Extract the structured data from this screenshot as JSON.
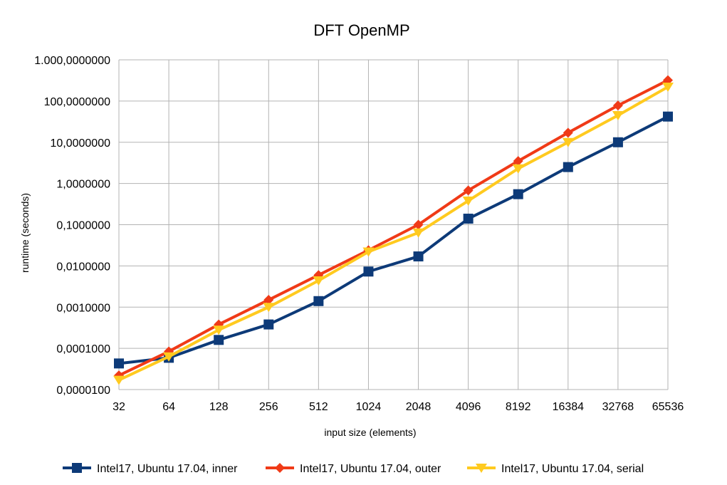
{
  "chart_data": {
    "type": "line",
    "title": "DFT OpenMP",
    "xlabel": "input size (elements)",
    "ylabel": "runtime (seconds)",
    "y_scale": "log",
    "ylim": [
      1e-05,
      1000
    ],
    "grid": true,
    "legend_position": "bottom",
    "categories": [
      "32",
      "64",
      "128",
      "256",
      "512",
      "1024",
      "2048",
      "4096",
      "8192",
      "16384",
      "32768",
      "65536"
    ],
    "y_ticks": [
      1e-05,
      0.0001,
      0.001,
      0.01,
      0.1,
      1,
      10,
      100,
      1000
    ],
    "y_tick_labels": [
      "0,0000100",
      "0,0001000",
      "0,0010000",
      "0,0100000",
      "0,1000000",
      "1,0000000",
      "10,0000000",
      "100,0000000",
      "1.000,0000000"
    ],
    "series": [
      {
        "name": "Intel17, Ubuntu 17.04, inner",
        "color": "#0d3a78",
        "marker": "square",
        "values": [
          4.3e-05,
          5.9e-05,
          0.00016,
          0.00038,
          0.0014,
          0.0073,
          0.017,
          0.14,
          0.55,
          2.5,
          10,
          42
        ]
      },
      {
        "name": "Intel17, Ubuntu 17.04, outer",
        "color": "#f03a17",
        "marker": "diamond",
        "values": [
          2.2e-05,
          8.4e-05,
          0.00038,
          0.0015,
          0.006,
          0.024,
          0.1,
          0.68,
          3.5,
          17,
          78,
          320
        ]
      },
      {
        "name": "Intel17, Ubuntu 17.04, serial",
        "color": "#ffca1f",
        "marker": "triangle-down",
        "values": [
          1.7e-05,
          6.3e-05,
          0.00028,
          0.001,
          0.0044,
          0.022,
          0.064,
          0.38,
          2.3,
          10,
          45,
          220
        ]
      }
    ]
  }
}
